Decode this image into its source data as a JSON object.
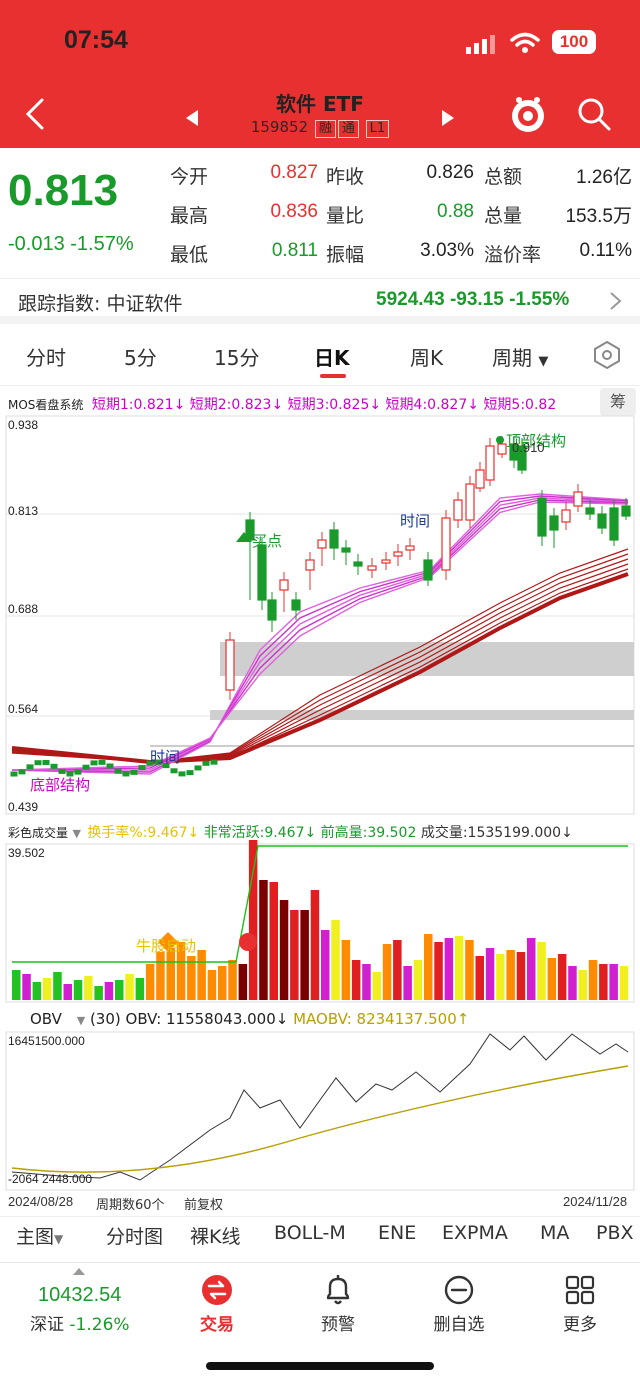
{
  "status": {
    "time": "07:54",
    "battery": "100"
  },
  "header": {
    "title": "软件 ETF",
    "code": "159852",
    "tags": [
      "融",
      "通",
      "L1"
    ]
  },
  "quote": {
    "price": "0.813",
    "change": "-0.013 -1.57%",
    "fields": [
      {
        "label": "今开",
        "value": "0.827",
        "color": "#e93030"
      },
      {
        "label": "昨收",
        "value": "0.826",
        "color": "#222222"
      },
      {
        "label": "总额",
        "value": "1.26亿",
        "color": "#222222"
      },
      {
        "label": "最高",
        "value": "0.836",
        "color": "#e93030"
      },
      {
        "label": "量比",
        "value": "0.88",
        "color": "#1a9a2a"
      },
      {
        "label": "总量",
        "value": "153.5万",
        "color": "#222222"
      },
      {
        "label": "最低",
        "value": "0.811",
        "color": "#1a9a2a"
      },
      {
        "label": "振幅",
        "value": "3.03%",
        "color": "#222222"
      },
      {
        "label": "溢价率",
        "value": "0.11%",
        "color": "#222222"
      }
    ]
  },
  "tracking": {
    "label": "跟踪指数: 中证软件",
    "value": "5924.43  -93.15  -1.55%"
  },
  "period_tabs": [
    "分时",
    "5分",
    "15分",
    "日K",
    "周K",
    "周期"
  ],
  "active_period": "日K",
  "main_indicator": {
    "name": "MOS看盘系统",
    "items": [
      "短期1:0.821↓",
      "短期2:0.823↓",
      "短期3:0.825↓",
      "短期4:0.827↓",
      "短期5:0.82"
    ],
    "side_label": "筹"
  },
  "price_axis": [
    "0.938",
    "0.813",
    "0.688",
    "0.564",
    "0.439"
  ],
  "annotations": {
    "top_structure": "顶部结构",
    "top_price": "0.910",
    "buy_point": "买点",
    "time1": "时间",
    "time2": "时间",
    "bottom_structure": "底部结构"
  },
  "volume_indicator": {
    "name": "彩色成交量",
    "turnover": "换手率%:9.467↓",
    "active": "非常活跃:9.467↓",
    "prev_high": "前高量:39.502",
    "volume": "成交量:1535199.000↓",
    "axis_top": "39.502",
    "bull_label": "牛股启动"
  },
  "obv_indicator": {
    "name": "OBV",
    "param": "(30)",
    "obv": "OBV: 11558043.000↓",
    "maobv": "MAOBV: 8234137.500↑",
    "axis_top": "16451500.000",
    "axis_bottom": "-2064 2448.000"
  },
  "date_row": {
    "start": "2024/08/28",
    "periods": "周期数60个",
    "adjust": "前复权",
    "end": "2024/11/28"
  },
  "bottom_tabs": [
    "主图",
    "分时图",
    "裸K线",
    "BOLL-M",
    "ENE",
    "EXPMA",
    "MA",
    "PBX"
  ],
  "footer": {
    "index_value": "10432.54",
    "index_name": "深证",
    "index_change": "-1.26%",
    "nav": [
      "交易",
      "预警",
      "删自选",
      "更多"
    ]
  },
  "colors": {
    "brand": "#e93030",
    "up": "#e93030",
    "down": "#1a9a2a"
  }
}
